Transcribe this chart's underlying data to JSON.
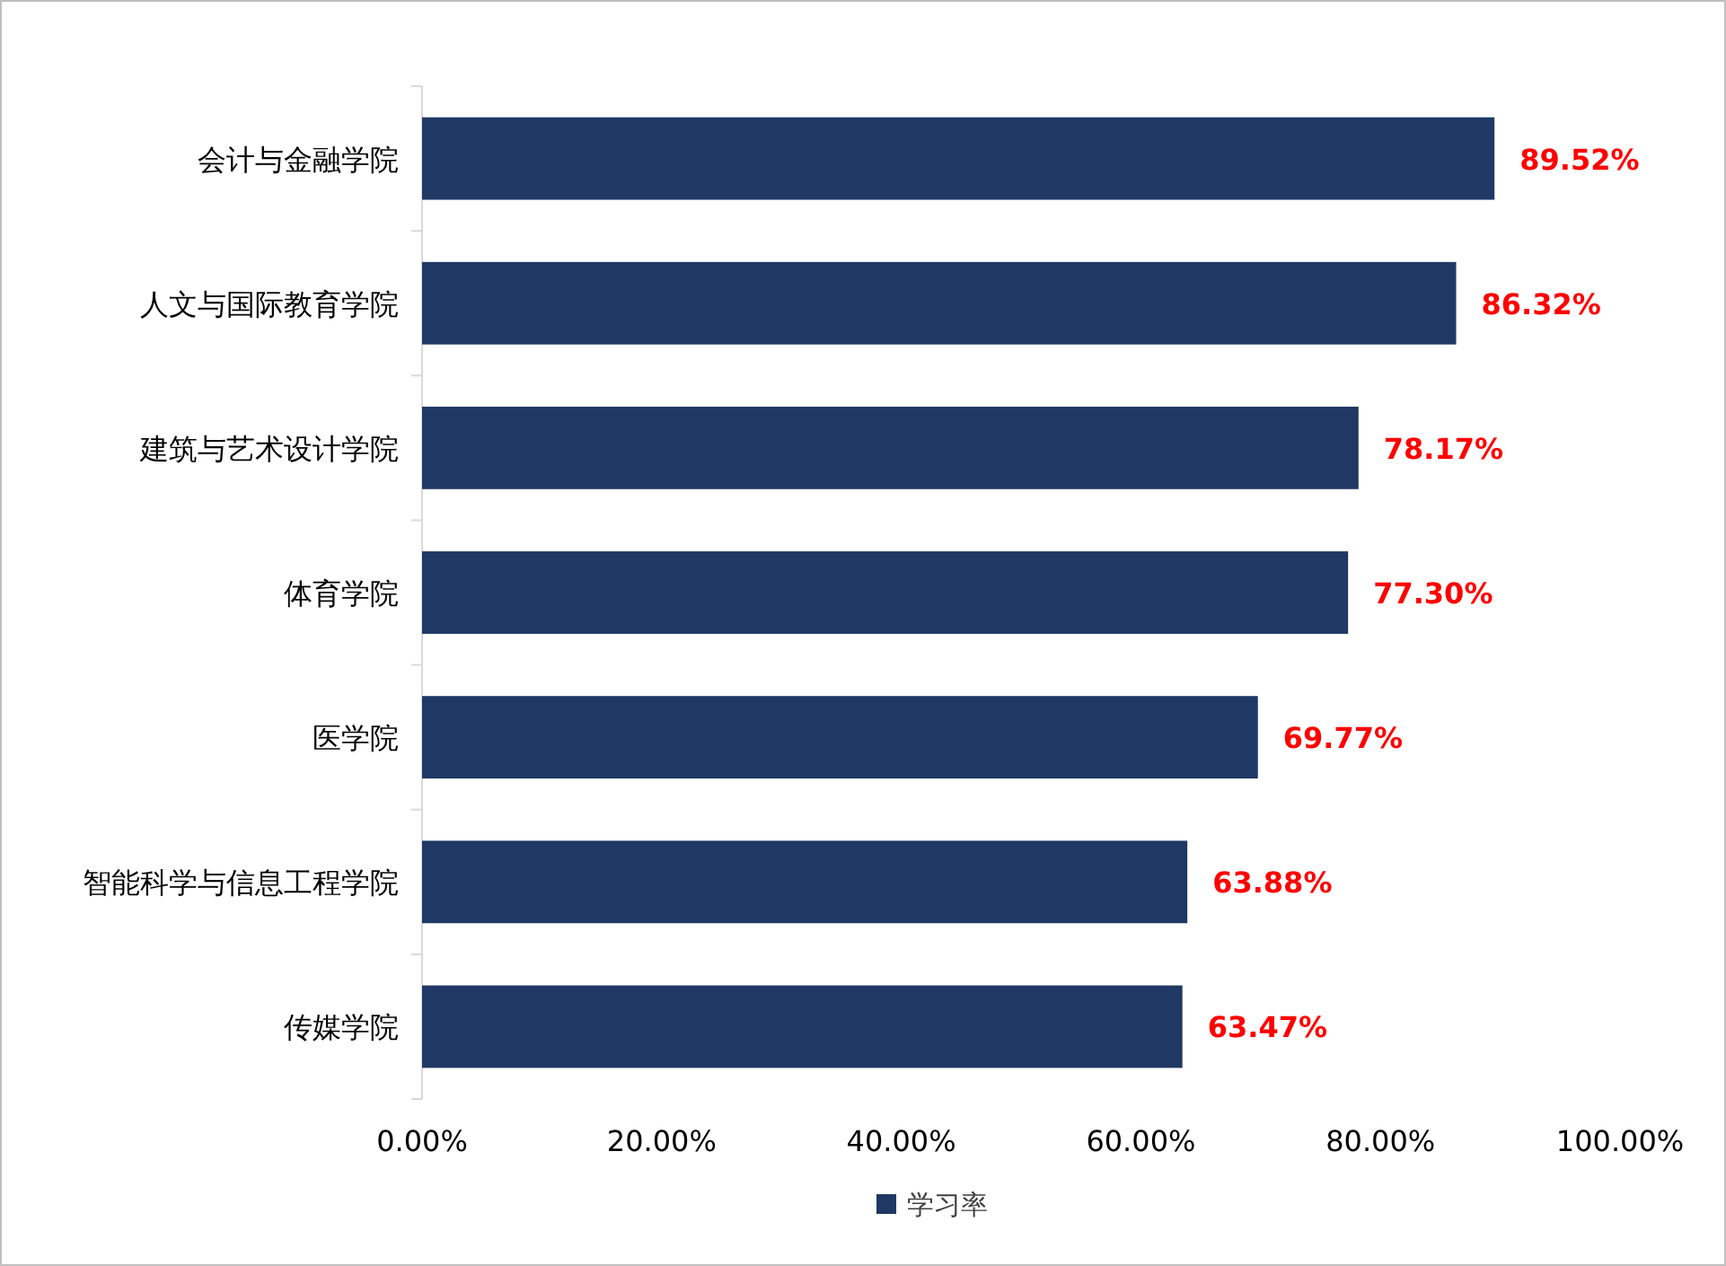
{
  "chart_data": {
    "type": "bar",
    "orientation": "horizontal",
    "categories": [
      "会计与金融学院",
      "人文与国际教育学院",
      "建筑与艺术设计学院",
      "体育学院",
      "医学院",
      "智能科学与信息工程学院",
      "传媒学院"
    ],
    "series": [
      {
        "name": "学习率",
        "color": "#203864",
        "values": [
          89.52,
          86.32,
          78.17,
          77.3,
          69.77,
          63.88,
          63.47
        ],
        "value_labels": [
          "89.52%",
          "86.32%",
          "78.17%",
          "77.30%",
          "69.77%",
          "63.88%",
          "63.47%"
        ]
      }
    ],
    "xlim": [
      0,
      100
    ],
    "xticks": [
      {
        "value": 0,
        "label": "0.00%"
      },
      {
        "value": 20,
        "label": "20.00%"
      },
      {
        "value": 40,
        "label": "40.00%"
      },
      {
        "value": 60,
        "label": "60.00%"
      },
      {
        "value": 80,
        "label": "80.00%"
      },
      {
        "value": 100,
        "label": "100.00%"
      }
    ],
    "grid": false,
    "legend": "bottom"
  }
}
